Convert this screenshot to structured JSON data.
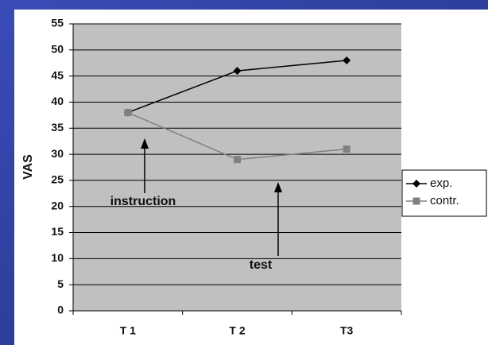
{
  "chart_data": {
    "type": "line",
    "y_label": "VAS",
    "categories": [
      "T 1",
      "T 2",
      "T3"
    ],
    "series": [
      {
        "name": "exp.",
        "color": "#000000",
        "marker": "diamond",
        "values": [
          38,
          46,
          48
        ]
      },
      {
        "name": "contr.",
        "color": "#808080",
        "marker": "square",
        "values": [
          38,
          29,
          31
        ]
      }
    ],
    "ylim": [
      0,
      55
    ],
    "yticks": [
      0,
      5,
      10,
      15,
      20,
      25,
      30,
      35,
      40,
      45,
      50,
      55
    ],
    "grid": true,
    "legend": "right",
    "annotations": [
      "instruction",
      "test"
    ]
  }
}
